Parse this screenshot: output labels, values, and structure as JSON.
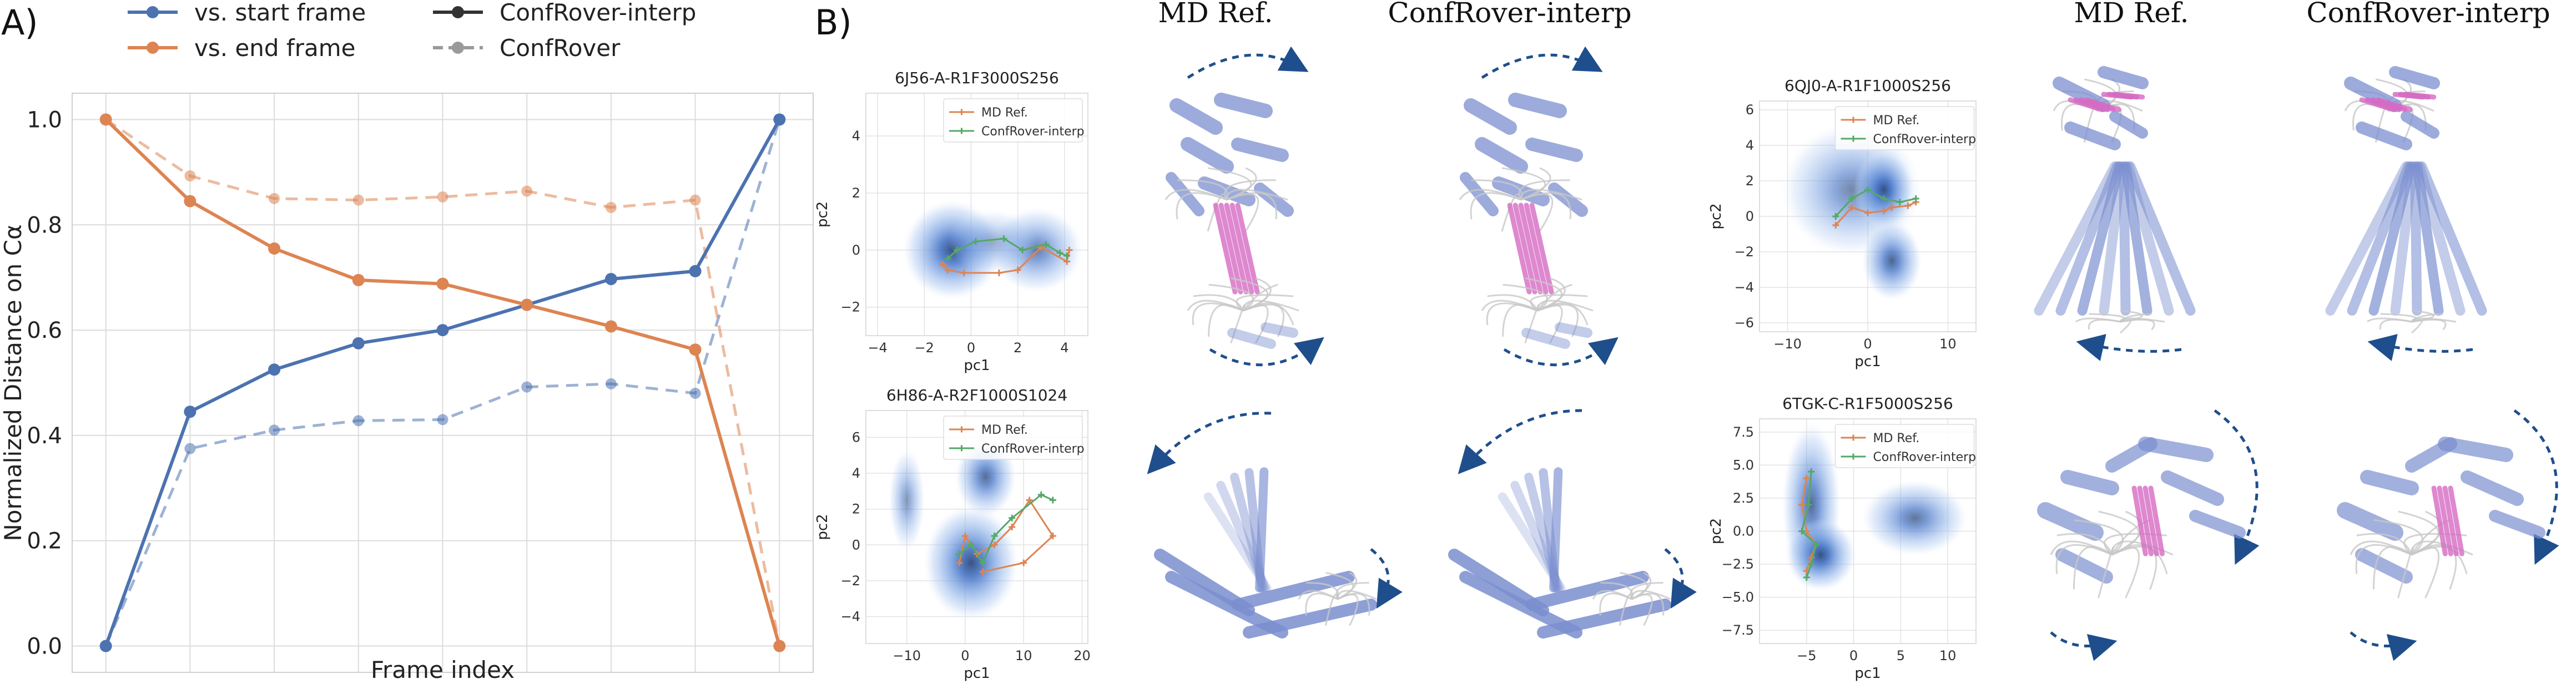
{
  "panel_a": {
    "label": "A)",
    "legend": [
      {
        "label": "vs. start frame",
        "color": "#4c72b0",
        "style": "solid"
      },
      {
        "label": "vs. end frame",
        "color": "#dd8452",
        "style": "solid"
      },
      {
        "label": "ConfRover-interp",
        "color": "#333333",
        "style": "solid"
      },
      {
        "label": "ConfRover",
        "color": "#9a9a9a",
        "style": "dashed"
      }
    ]
  },
  "panel_b": {
    "label": "B)",
    "column_headers": [
      "MD Ref.",
      "ConfRover-interp",
      "MD Ref.",
      "ConfRover-interp"
    ],
    "structure_colors": {
      "helix": "#7b8fd0",
      "sheet": "#d66bc4",
      "loop": "#c8c8c8",
      "arrow": "#1f4e8c"
    }
  },
  "chart_data": [
    {
      "type": "line",
      "title": "",
      "xlabel": "Frame index",
      "ylabel": "Normalized Distance on Cα",
      "x": [
        0,
        1,
        2,
        3,
        4,
        5,
        6,
        7,
        8
      ],
      "xlim": [
        -0.4,
        8.4
      ],
      "ylim": [
        -0.05,
        1.05
      ],
      "xticks": [
        "0",
        "1",
        "2",
        "3",
        "4",
        "5",
        "6",
        "7",
        "8"
      ],
      "yticks": [
        "0.0",
        "0.2",
        "0.4",
        "0.6",
        "0.8",
        "1.0"
      ],
      "grid": true,
      "legend_position": "top",
      "series": [
        {
          "name": "vs. start frame",
          "model": "ConfRover-interp",
          "color": "#4c72b0",
          "style": "solid",
          "values": [
            0.0,
            0.445,
            0.525,
            0.575,
            0.6,
            0.648,
            0.697,
            0.712,
            1.0
          ]
        },
        {
          "name": "vs. end frame",
          "model": "ConfRover-interp",
          "color": "#dd8452",
          "style": "solid",
          "values": [
            1.0,
            0.845,
            0.755,
            0.695,
            0.688,
            0.648,
            0.607,
            0.563,
            0.0
          ]
        },
        {
          "name": "vs. start frame",
          "model": "ConfRover",
          "color": "#4c72b0",
          "style": "dashed",
          "values": [
            0.0,
            0.375,
            0.41,
            0.428,
            0.43,
            0.492,
            0.498,
            0.48,
            1.0
          ]
        },
        {
          "name": "vs. end frame",
          "model": "ConfRover",
          "color": "#dd8452",
          "style": "dashed",
          "values": [
            1.0,
            0.893,
            0.85,
            0.847,
            0.853,
            0.864,
            0.833,
            0.847,
            0.0
          ]
        }
      ]
    },
    {
      "type": "scatter",
      "title": "6J56-A-R1F3000S256",
      "xlabel": "pc1",
      "ylabel": "pc2",
      "xlim": [
        -4.5,
        5
      ],
      "ylim": [
        -3,
        5.5
      ],
      "xticks": [
        "−4",
        "−2",
        "0",
        "2",
        "4"
      ],
      "yticks": [
        "−2",
        "0",
        "2",
        "4"
      ],
      "legend_position": "top-right",
      "density_blobs": [
        {
          "cx": -0.8,
          "cy": 0.0,
          "rx": 1.7,
          "ry": 1.4,
          "peak": 1.0
        },
        {
          "cx": 2.8,
          "cy": 0.0,
          "rx": 1.6,
          "ry": 1.2,
          "peak": 0.75
        },
        {
          "cx": 0.9,
          "cy": 0.3,
          "rx": 1.5,
          "ry": 0.9,
          "peak": 0.45
        }
      ],
      "series": [
        {
          "name": "MD Ref.",
          "color": "#dd8452",
          "points": [
            [
              -1.2,
              -0.5
            ],
            [
              -1.0,
              -0.7
            ],
            [
              -0.3,
              -0.8
            ],
            [
              1.2,
              -0.8
            ],
            [
              2.0,
              -0.7
            ],
            [
              3.0,
              0.1
            ],
            [
              4.1,
              -0.4
            ],
            [
              4.2,
              0.0
            ]
          ]
        },
        {
          "name": "ConfRover-interp",
          "color": "#55a868",
          "points": [
            [
              -1.0,
              -0.3
            ],
            [
              -0.6,
              0.0
            ],
            [
              0.2,
              0.3
            ],
            [
              1.4,
              0.4
            ],
            [
              2.2,
              0.0
            ],
            [
              3.2,
              0.2
            ],
            [
              3.8,
              -0.1
            ],
            [
              4.1,
              -0.2
            ]
          ]
        }
      ]
    },
    {
      "type": "scatter",
      "title": "6H86-A-R2F1000S1024",
      "xlabel": "pc1",
      "ylabel": "pc2",
      "xlim": [
        -17,
        21
      ],
      "ylim": [
        -5.5,
        7.5
      ],
      "xticks": [
        "−10",
        "0",
        "10",
        "20"
      ],
      "yticks": [
        "−4",
        "−2",
        "0",
        "2",
        "4",
        "6"
      ],
      "legend_position": "top-right",
      "density_blobs": [
        {
          "cx": -10,
          "cy": 2.5,
          "rx": 2.5,
          "ry": 2.3,
          "peak": 0.6
        },
        {
          "cx": 3.5,
          "cy": 3.8,
          "rx": 4.2,
          "ry": 1.8,
          "peak": 0.85
        },
        {
          "cx": 1,
          "cy": -1,
          "rx": 6.5,
          "ry": 2.6,
          "peak": 1.0
        }
      ],
      "series": [
        {
          "name": "MD Ref.",
          "color": "#dd8452",
          "points": [
            [
              -1,
              -1
            ],
            [
              0,
              0.5
            ],
            [
              2,
              -0.5
            ],
            [
              5,
              0
            ],
            [
              8,
              1
            ],
            [
              11,
              2.5
            ],
            [
              15,
              0.5
            ],
            [
              10,
              -1
            ],
            [
              3,
              -1.5
            ]
          ]
        },
        {
          "name": "ConfRover-interp",
          "color": "#55a868",
          "points": [
            [
              -1,
              -0.5
            ],
            [
              1,
              0
            ],
            [
              3,
              -1
            ],
            [
              5,
              0.5
            ],
            [
              8,
              1.5
            ],
            [
              13,
              2.8
            ],
            [
              15,
              2.5
            ]
          ]
        }
      ]
    },
    {
      "type": "scatter",
      "title": "6QJ0-A-R1F1000S256",
      "xlabel": "pc1",
      "ylabel": "pc2",
      "xlim": [
        -13.5,
        13.5
      ],
      "ylim": [
        -6.5,
        6.5
      ],
      "xticks": [
        "−10",
        "0",
        "10"
      ],
      "yticks": [
        "−6",
        "−4",
        "−2",
        "0",
        "2",
        "4",
        "6"
      ],
      "legend_position": "top-right",
      "density_blobs": [
        {
          "cx": -2,
          "cy": 1.5,
          "rx": 7,
          "ry": 3,
          "peak": 0.7
        },
        {
          "cx": 2,
          "cy": 1.5,
          "rx": 3,
          "ry": 1.8,
          "peak": 1.0
        },
        {
          "cx": 3,
          "cy": -2.5,
          "rx": 3,
          "ry": 1.8,
          "peak": 0.9
        }
      ],
      "series": [
        {
          "name": "MD Ref.",
          "color": "#dd8452",
          "points": [
            [
              -4,
              -0.5
            ],
            [
              -2,
              0.5
            ],
            [
              0,
              0.2
            ],
            [
              2,
              0.3
            ],
            [
              3,
              0.5
            ],
            [
              5,
              0.6
            ],
            [
              6,
              0.8
            ]
          ]
        },
        {
          "name": "ConfRover-interp",
          "color": "#55a868",
          "points": [
            [
              -4,
              0
            ],
            [
              -2,
              1
            ],
            [
              0,
              1.5
            ],
            [
              2,
              1
            ],
            [
              4,
              0.8
            ],
            [
              6,
              1
            ]
          ]
        }
      ]
    },
    {
      "type": "scatter",
      "title": "6TGK-C-R1F5000S256",
      "xlabel": "pc1",
      "ylabel": "pc2",
      "xlim": [
        -10,
        13
      ],
      "ylim": [
        -8.5,
        8.5
      ],
      "xticks": [
        "−5",
        "0",
        "5",
        "10"
      ],
      "yticks": [
        "−7.5",
        "−5.0",
        "−2.5",
        "0.0",
        "2.5",
        "5.0",
        "7.5"
      ],
      "legend_position": "top-right",
      "density_blobs": [
        {
          "cx": -4.5,
          "cy": 2.0,
          "rx": 2.5,
          "ry": 5,
          "peak": 0.85
        },
        {
          "cx": -3.5,
          "cy": -1.8,
          "rx": 3,
          "ry": 2.2,
          "peak": 1.0
        },
        {
          "cx": 6.5,
          "cy": 1.0,
          "rx": 4.5,
          "ry": 2.3,
          "peak": 0.8
        }
      ],
      "series": [
        {
          "name": "MD Ref.",
          "color": "#dd8452",
          "points": [
            [
              -5,
              4
            ],
            [
              -5.5,
              2
            ],
            [
              -5,
              0
            ],
            [
              -4,
              -1
            ],
            [
              -4.5,
              -2
            ],
            [
              -5,
              -3
            ]
          ]
        },
        {
          "name": "ConfRover-interp",
          "color": "#55a868",
          "points": [
            [
              -4.5,
              4.5
            ],
            [
              -4.8,
              2
            ],
            [
              -5.5,
              0
            ],
            [
              -4,
              -1
            ],
            [
              -4.5,
              -2.5
            ],
            [
              -5,
              -3.5
            ]
          ]
        }
      ]
    }
  ]
}
